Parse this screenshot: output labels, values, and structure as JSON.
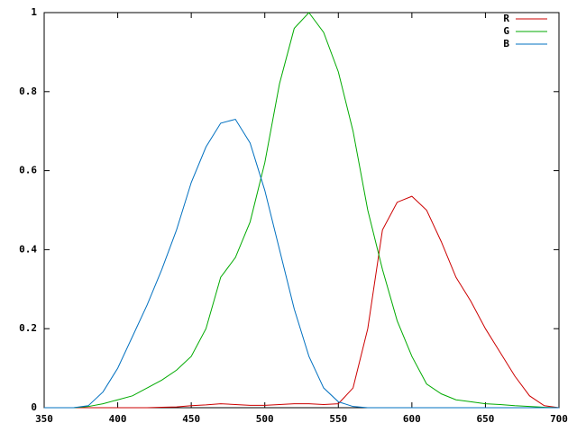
{
  "chart_data": {
    "type": "line",
    "x": [
      350,
      360,
      370,
      380,
      390,
      400,
      410,
      420,
      430,
      440,
      450,
      460,
      470,
      480,
      490,
      500,
      510,
      520,
      530,
      540,
      550,
      560,
      570,
      580,
      590,
      600,
      610,
      620,
      630,
      640,
      650,
      660,
      670,
      680,
      690,
      700
    ],
    "series": [
      {
        "name": "R",
        "color": "#cc0000",
        "values": [
          0,
          0,
          0,
          0,
          0,
          0,
          0,
          0,
          0.001,
          0.002,
          0.005,
          0.007,
          0.01,
          0.008,
          0.006,
          0.006,
          0.008,
          0.01,
          0.01,
          0.008,
          0.01,
          0.05,
          0.2,
          0.45,
          0.52,
          0.535,
          0.5,
          0.42,
          0.33,
          0.27,
          0.2,
          0.14,
          0.08,
          0.03,
          0.005,
          0
        ]
      },
      {
        "name": "G",
        "color": "#00aa00",
        "values": [
          0,
          0,
          0,
          0.003,
          0.01,
          0.02,
          0.03,
          0.05,
          0.07,
          0.095,
          0.13,
          0.2,
          0.33,
          0.38,
          0.47,
          0.62,
          0.82,
          0.96,
          1.0,
          0.95,
          0.85,
          0.7,
          0.5,
          0.35,
          0.22,
          0.13,
          0.06,
          0.035,
          0.02,
          0.015,
          0.01,
          0.008,
          0.005,
          0.003,
          0.001,
          0
        ]
      },
      {
        "name": "B",
        "color": "#0070c0",
        "values": [
          0,
          0,
          0,
          0.005,
          0.04,
          0.1,
          0.18,
          0.26,
          0.35,
          0.45,
          0.57,
          0.66,
          0.72,
          0.73,
          0.67,
          0.55,
          0.4,
          0.25,
          0.13,
          0.05,
          0.015,
          0.003,
          0,
          0,
          0,
          0,
          0,
          0,
          0,
          0,
          0,
          0,
          0,
          0,
          0,
          0
        ]
      }
    ],
    "xlim": [
      350,
      700
    ],
    "xticks": [
      350,
      400,
      450,
      500,
      550,
      600,
      650,
      700
    ],
    "ylim": [
      0,
      1
    ],
    "yticks": [
      0,
      0.2,
      0.4,
      0.6,
      0.8,
      1
    ],
    "legend": "top-right"
  }
}
